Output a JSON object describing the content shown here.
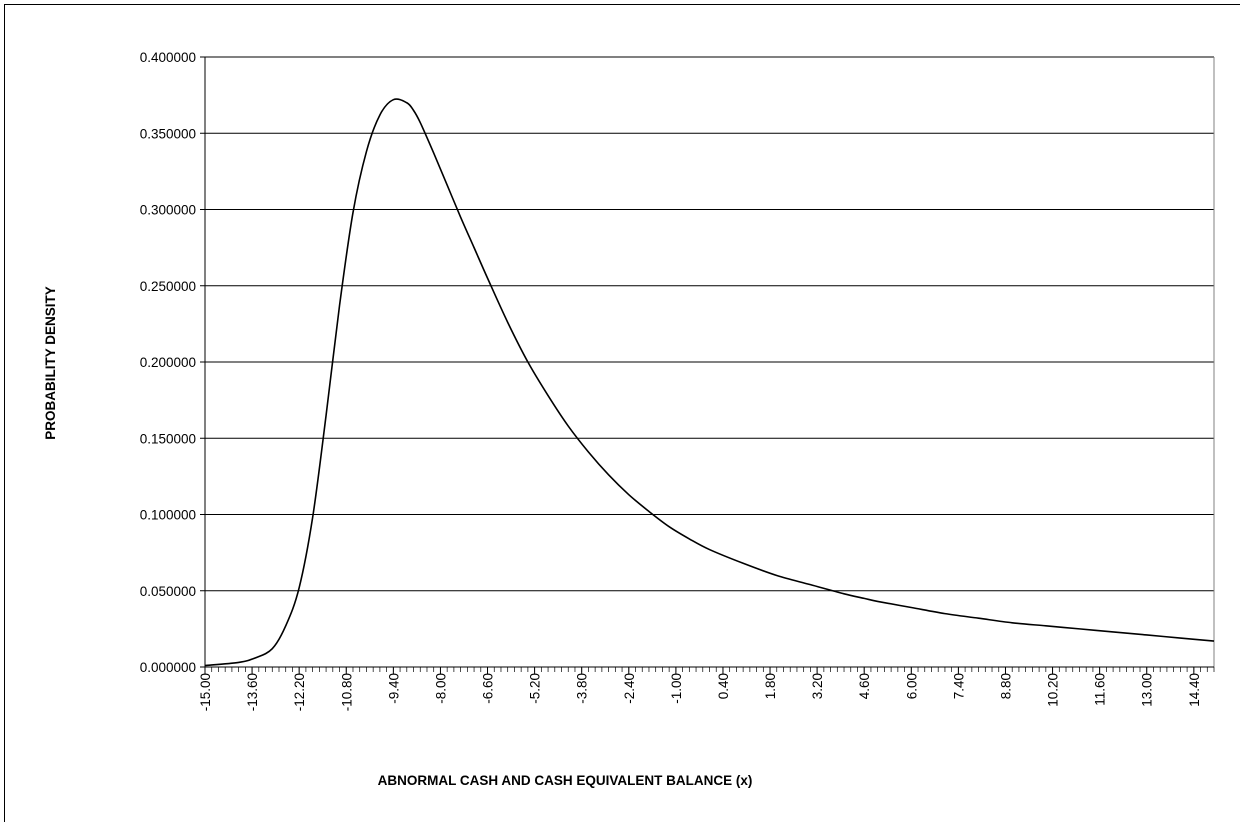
{
  "chart_data": {
    "type": "line",
    "title": "",
    "xlabel": "ABNORMAL CASH AND CASH EQUIVALENT BALANCE (x)",
    "ylabel": "PROBABILITY DENSITY",
    "xlim": [
      -15.0,
      15.0
    ],
    "ylim": [
      0.0,
      0.4
    ],
    "grid": "horizontal",
    "y_ticks": [
      "0.000000",
      "0.050000",
      "0.100000",
      "0.150000",
      "0.200000",
      "0.250000",
      "0.300000",
      "0.350000",
      "0.400000"
    ],
    "x_ticks": [
      "-15.00",
      "-13.60",
      "-12.20",
      "-10.80",
      "-9.40",
      "-8.00",
      "-6.60",
      "-5.20",
      "-3.80",
      "-2.40",
      "-1.00",
      "0.40",
      "1.80",
      "3.20",
      "4.60",
      "6.00",
      "7.40",
      "8.80",
      "10.20",
      "11.60",
      "13.00",
      "14.40"
    ],
    "series": [
      {
        "color": "#000000",
        "x": [
          -15.0,
          -14.0,
          -13.5,
          -13.0,
          -12.6,
          -12.2,
          -11.8,
          -11.4,
          -11.0,
          -10.6,
          -10.2,
          -9.8,
          -9.4,
          -9.0,
          -8.8,
          -8.6,
          -8.2,
          -7.8,
          -7.4,
          -7.0,
          -6.6,
          -6.0,
          -5.4,
          -4.8,
          -4.2,
          -3.6,
          -3.0,
          -2.4,
          -1.8,
          -1.2,
          -0.6,
          0.0,
          1.0,
          2.0,
          3.0,
          4.0,
          4.6,
          5.0,
          6.0,
          7.0,
          8.0,
          9.0,
          10.0,
          11.0,
          12.0,
          13.0,
          14.0,
          15.0
        ],
        "y": [
          0.001,
          0.003,
          0.006,
          0.012,
          0.027,
          0.052,
          0.098,
          0.165,
          0.237,
          0.298,
          0.338,
          0.362,
          0.372,
          0.37,
          0.365,
          0.357,
          0.337,
          0.316,
          0.295,
          0.275,
          0.255,
          0.226,
          0.2,
          0.178,
          0.158,
          0.141,
          0.126,
          0.113,
          0.102,
          0.092,
          0.084,
          0.077,
          0.068,
          0.06,
          0.054,
          0.048,
          0.045,
          0.043,
          0.039,
          0.035,
          0.032,
          0.029,
          0.027,
          0.025,
          0.023,
          0.021,
          0.019,
          0.017
        ]
      }
    ]
  }
}
